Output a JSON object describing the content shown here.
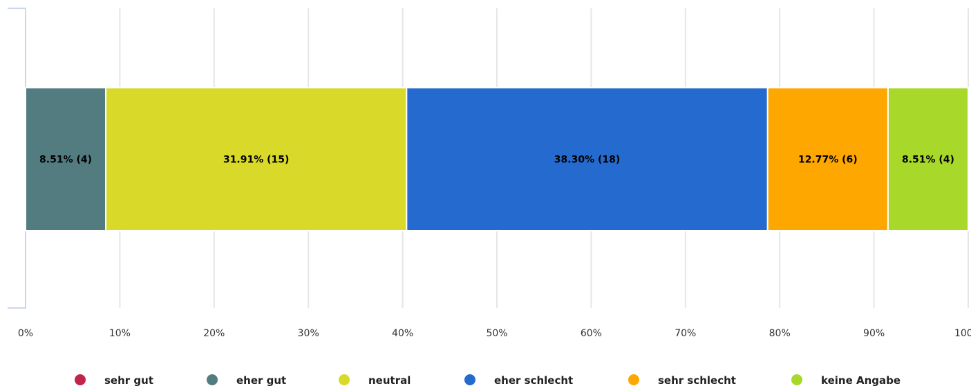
{
  "chart_data": {
    "type": "bar",
    "orientation": "horizontal",
    "stacked": true,
    "xlim": [
      0,
      100
    ],
    "x_ticks": [
      "0%",
      "10%",
      "20%",
      "30%",
      "40%",
      "50%",
      "60%",
      "70%",
      "80%",
      "90%",
      "100%"
    ],
    "grid": true,
    "legend_placement": "bottom",
    "series": [
      {
        "name": "sehr gut",
        "value": 0,
        "label": "",
        "color": "#c2234a"
      },
      {
        "name": "eher gut",
        "value": 8.51,
        "label": "8.51% (4)",
        "color": "#527c80"
      },
      {
        "name": "neutral",
        "value": 31.91,
        "label": "31.91% (15)",
        "color": "#d8d928"
      },
      {
        "name": "eher schlecht",
        "value": 38.3,
        "label": "38.30% (18)",
        "color": "#256bcf"
      },
      {
        "name": "sehr schlecht",
        "value": 12.77,
        "label": "12.77% (6)",
        "color": "#fda700"
      },
      {
        "name": "keine Angabe",
        "value": 8.51,
        "label": "8.51% (4)",
        "color": "#a7d82a"
      }
    ]
  }
}
